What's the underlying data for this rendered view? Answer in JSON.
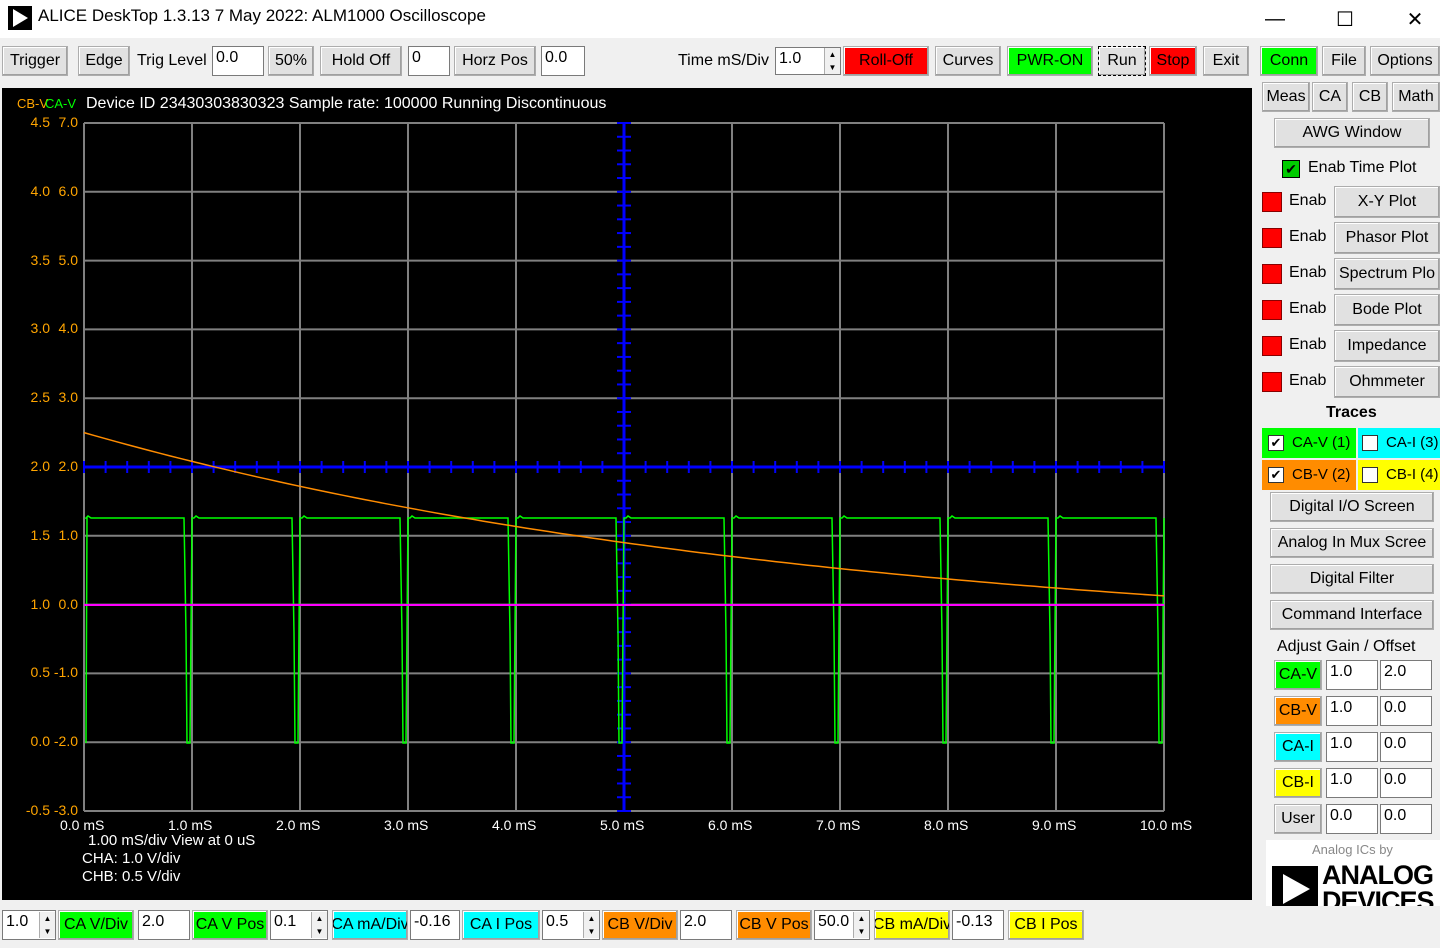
{
  "window": {
    "title": "ALICE DeskTop 1.3.13 7 May 2022: ALM1000 Oscilloscope",
    "minimize": "—",
    "maximize": "☐",
    "close": "✕"
  },
  "toolbar": {
    "trigger": "Trigger",
    "edge": "Edge",
    "trig_level_label": "Trig Level",
    "trig_level_value": "0.0",
    "fifty": "50%",
    "hold_off_label": "Hold Off",
    "hold_off_value": "0",
    "horz_pos_label": "Horz Pos",
    "horz_pos_value": "0.0",
    "time_div_label": "Time mS/Div",
    "time_div_value": "1.0",
    "roll_off": "Roll-Off",
    "curves": "Curves",
    "pwr_on": "PWR-ON",
    "run": "Run",
    "stop": "Stop",
    "exit": "Exit"
  },
  "side": {
    "conn": "Conn",
    "file": "File",
    "options": "Options",
    "meas": "Meas",
    "ca": "CA",
    "cb": "CB",
    "math": "Math",
    "awg_window": "AWG Window",
    "enab_time_plot": "Enab Time Plot",
    "enab": "Enab",
    "plots": [
      "X-Y Plot",
      "Phasor Plot",
      "Spectrum Plo",
      "Bode Plot",
      "Impedance",
      "Ohmmeter"
    ],
    "traces_title": "Traces",
    "trace_cav": "CA-V (1)",
    "trace_cai": "CA-I (3)",
    "trace_cbv": "CB-V (2)",
    "trace_cbi": "CB-I (4)",
    "digital_io": "Digital I/O Screen",
    "analog_mux": "Analog In Mux Scree",
    "digital_filter": "Digital Filter",
    "command_interface": "Command Interface",
    "adjust_title": "Adjust Gain / Offset",
    "gain_rows": [
      {
        "label": "CA-V",
        "gain": "1.0",
        "offset": "2.0"
      },
      {
        "label": "CB-V",
        "gain": "1.0",
        "offset": "0.0"
      },
      {
        "label": "CA-I",
        "gain": "1.0",
        "offset": "0.0"
      },
      {
        "label": "CB-I",
        "gain": "1.0",
        "offset": "0.0"
      },
      {
        "label": "User",
        "gain": "0.0",
        "offset": "0.0"
      }
    ],
    "logo_small": "Analog ICs by",
    "logo_line1": "ANALOG",
    "logo_line2": "DEVICES"
  },
  "scope": {
    "legend_cb": "CB-V",
    "legend_ca": "CA-V",
    "header": "Device ID 23430303830323 Sample rate: 100000 Running Discontinuous",
    "y_labels_cb": [
      "4.5",
      "4.0",
      "3.5",
      "3.0",
      "2.5",
      "2.0",
      "1.5",
      "1.0",
      "0.5",
      "0.0",
      "-0.5"
    ],
    "y_labels_ca": [
      "7.0",
      "6.0",
      "5.0",
      "4.0",
      "3.0",
      "2.0",
      "1.0",
      "0.0",
      "-1.0",
      "-2.0",
      "-3.0"
    ],
    "x_labels": [
      "0.0",
      "1.0",
      "2.0",
      "3.0",
      "4.0",
      "5.0",
      "6.0",
      "7.0",
      "8.0",
      "9.0",
      "10.0"
    ],
    "x_unit": "mS",
    "line1": "1.00  mS/div  View at 0 uS",
    "line2": "CHA: 1.0 V/div",
    "line3": "CHB: 0.5 V/div",
    "colors": {
      "ca": "#00ff00",
      "cb": "#ff8c00",
      "blue": "#0000ff",
      "magenta": "#ff00ff",
      "grid": "#808080"
    }
  },
  "bottom": {
    "v1": "1.0",
    "ca_vdiv": "CA V/Div",
    "v2": "2.0",
    "ca_vpos": "CA V Pos",
    "v3": "0.1",
    "ca_madiv": "CA mA/Div",
    "v4": "-0.16",
    "ca_ipos": "CA I Pos",
    "v5": "0.5",
    "cb_vdiv": "CB V/Div",
    "v6": "2.0",
    "cb_vpos": "CB V Pos",
    "v7": "50.0",
    "cb_madiv": "CB mA/Div",
    "v8": "-0.13",
    "cb_ipos": "CB I Pos"
  }
}
